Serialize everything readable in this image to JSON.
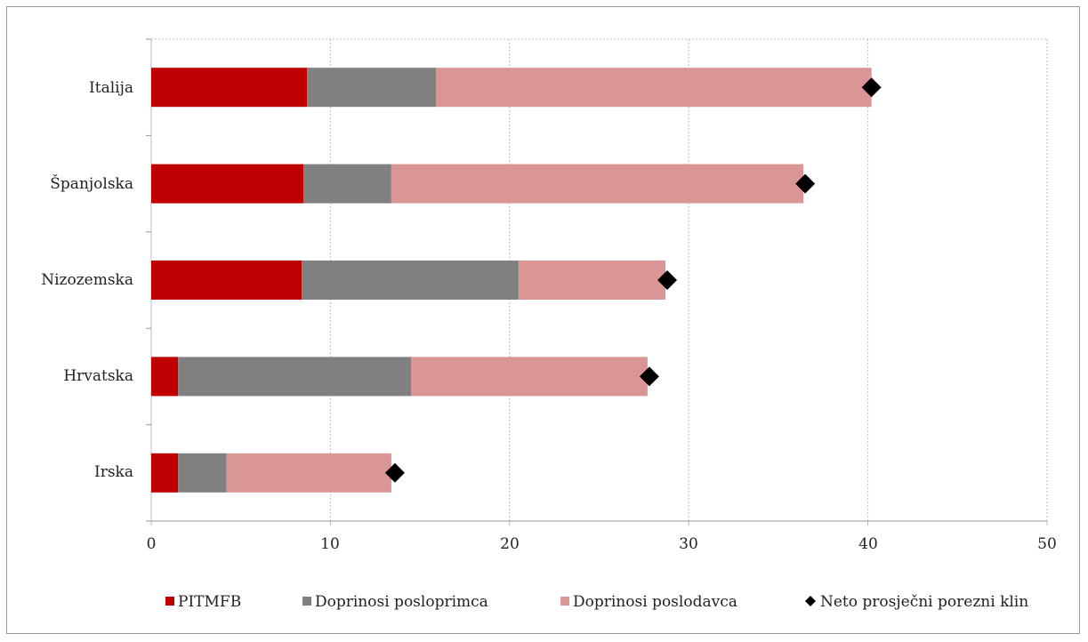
{
  "chart_data": {
    "type": "bar",
    "orientation": "horizontal",
    "stacked": true,
    "categories": [
      "Italija",
      "Španjolska",
      "Nizozemska",
      "Hrvatska",
      "Irska"
    ],
    "series": [
      {
        "name": "PITMFB",
        "color": "#c00000",
        "values": [
          8.7,
          8.5,
          8.4,
          1.5,
          1.5
        ]
      },
      {
        "name": "Doprinosi posloprimca",
        "color": "#808080",
        "values": [
          7.2,
          4.9,
          12.1,
          13.0,
          2.7
        ]
      },
      {
        "name": "Doprinosi poslodavca",
        "color": "#d99694",
        "values": [
          24.3,
          23.0,
          8.2,
          13.2,
          9.2
        ]
      }
    ],
    "markers": {
      "name": "Neto prosječni porezni klin",
      "color": "#000000",
      "values": [
        40.2,
        36.5,
        28.8,
        27.8,
        13.6
      ]
    },
    "xlim": [
      0,
      50
    ],
    "xticks": [
      "0",
      "10",
      "20",
      "30",
      "40",
      "50"
    ],
    "grid": "vertical dashed",
    "legend": "bottom"
  }
}
